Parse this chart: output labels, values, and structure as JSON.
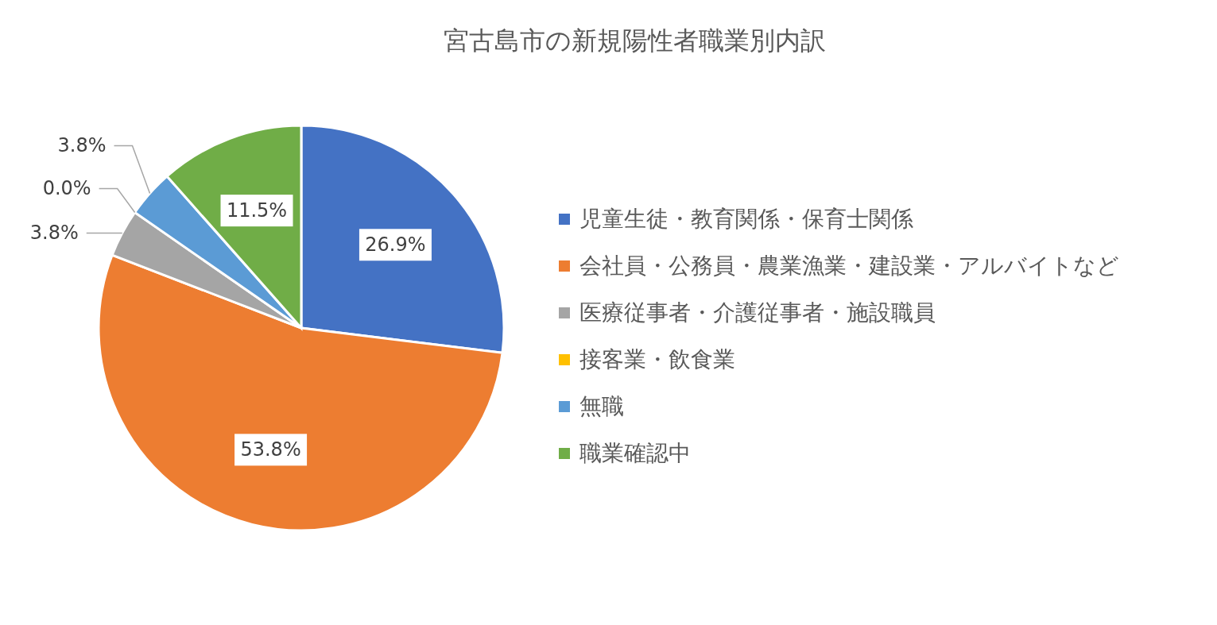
{
  "chart_data": {
    "type": "pie",
    "title": "宮古島市の新規陽性者職業別内訳",
    "categories": [
      "児童生徒・教育関係・保育士関係",
      "会社員・公務員・農業漁業・建設業・アルバイトなど",
      "医療従事者・介護従事者・施設職員",
      "接客業・飲食業",
      "無職",
      "職業確認中"
    ],
    "values": [
      26.9,
      53.8,
      3.8,
      0.0,
      3.8,
      11.5
    ],
    "value_labels": [
      "26.9%",
      "53.8%",
      "3.8%",
      "0.0%",
      "3.8%",
      "11.5%"
    ],
    "colors": [
      "#4472c4",
      "#ed7d31",
      "#a5a5a5",
      "#ffc000",
      "#5b9bd5",
      "#70ad47"
    ],
    "legend": "right"
  }
}
